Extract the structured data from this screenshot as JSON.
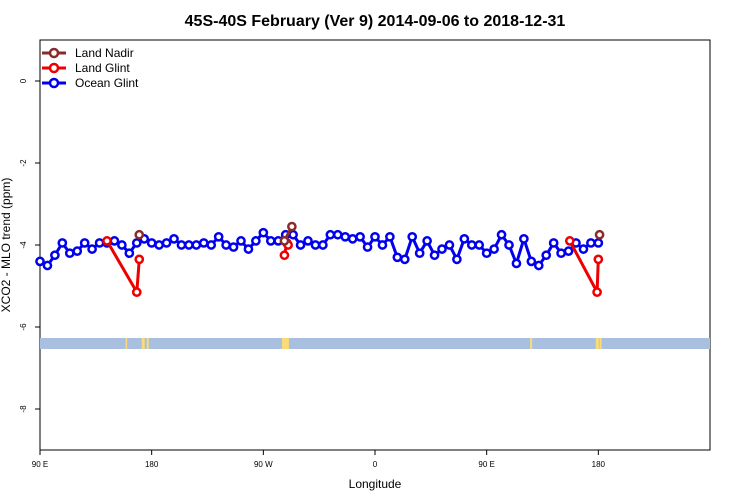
{
  "chart_data": {
    "type": "line",
    "title": "45S-40S February (Ver 9)   2014-09-06 to 2018-12-31",
    "xlabel": "Longitude",
    "ylabel": "XCO2 - MLO trend (ppm)",
    "xlim": [
      -90,
      450
    ],
    "ylim": [
      -9,
      1
    ],
    "x_ticks": [
      {
        "value": -90,
        "label": "90 E"
      },
      {
        "value": 0,
        "label": "180"
      },
      {
        "value": 90,
        "label": "90 W"
      },
      {
        "value": 180,
        "label": "0"
      },
      {
        "value": 270,
        "label": "90 E"
      },
      {
        "value": 360,
        "label": "180"
      }
    ],
    "y_ticks": [
      {
        "value": 0,
        "label": "0"
      },
      {
        "value": -2,
        "label": "-2"
      },
      {
        "value": -4,
        "label": "-4"
      },
      {
        "value": -6,
        "label": "-6"
      },
      {
        "value": -8,
        "label": "-8"
      }
    ],
    "legend": {
      "position": "top-left",
      "entries": [
        "Land Nadir",
        "Land Glint",
        "Ocean Glint"
      ]
    },
    "series": [
      {
        "name": "Ocean Glint",
        "color": "#0000ee",
        "x": [
          -90,
          -84,
          -78,
          -72,
          -66,
          -60,
          -54,
          -48,
          -42,
          -36,
          -30,
          -24,
          -18,
          -12,
          -6,
          0,
          6,
          12,
          18,
          24,
          30,
          36,
          42,
          48,
          54,
          60,
          66,
          72,
          78,
          84,
          90,
          96,
          102,
          108,
          114,
          120,
          126,
          132,
          138,
          144,
          150,
          156,
          162,
          168,
          174,
          180,
          186,
          192,
          198,
          204,
          210,
          216,
          222,
          228,
          234,
          240,
          246,
          252,
          258,
          264,
          270,
          276,
          282,
          288,
          294,
          300,
          306,
          312,
          318,
          324,
          330,
          336,
          342,
          348,
          354,
          360
        ],
        "y": [
          -4.4,
          -4.5,
          -4.25,
          -3.95,
          -4.2,
          -4.15,
          -3.95,
          -4.1,
          -3.95,
          -3.95,
          -3.9,
          -4.0,
          -4.2,
          -3.95,
          -3.85,
          -3.95,
          -4.0,
          -3.95,
          -3.85,
          -4.0,
          -4.0,
          -4.0,
          -3.95,
          -4.0,
          -3.8,
          -4.0,
          -4.05,
          -3.9,
          -4.1,
          -3.9,
          -3.7,
          -3.9,
          -3.9,
          -3.75,
          -3.75,
          -4.0,
          -3.9,
          -4.0,
          -4.0,
          -3.75,
          -3.75,
          -3.8,
          -3.85,
          -3.8,
          -4.05,
          -3.8,
          -4.0,
          -3.8,
          -4.3,
          -4.35,
          -3.8,
          -4.2,
          -3.9,
          -4.25,
          -4.1,
          -4.0,
          -4.35,
          -3.85,
          -4.0,
          -4.0,
          -4.2,
          -4.1,
          -3.75,
          -4.0,
          -4.45,
          -3.85,
          -4.4,
          -4.5,
          -4.25,
          -3.95,
          -4.2,
          -4.15,
          -3.95,
          -4.1,
          -3.95,
          -3.95
        ]
      },
      {
        "name": "Land Glint",
        "color": "#ee0000",
        "segments": [
          {
            "x": [
              -36,
              -12,
              -10
            ],
            "y": [
              -3.9,
              -5.15,
              -4.35
            ]
          },
          {
            "x": [
              107,
              109,
              110
            ],
            "y": [
              -4.25,
              -3.95,
              -4.0
            ]
          },
          {
            "x": [
              337,
              359,
              360
            ],
            "y": [
              -3.9,
              -5.15,
              -4.35
            ]
          }
        ]
      },
      {
        "name": "Land Nadir",
        "color": "#8b2a2a",
        "segments": [
          {
            "x": [
              -10
            ],
            "y": [
              -3.75
            ]
          },
          {
            "x": [
              107,
              113
            ],
            "y": [
              -3.9,
              -3.55
            ]
          },
          {
            "x": [
              361
            ],
            "y": [
              -3.75
            ]
          }
        ]
      }
    ],
    "map_band": {
      "ocean_color": "#a8bfe0",
      "land_color": "#f8dc78"
    }
  }
}
